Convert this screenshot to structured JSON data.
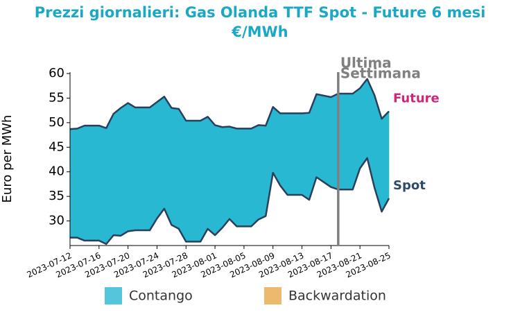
{
  "chart_data": {
    "type": "line",
    "title": [
      "Prezzi giornalieri: Gas Olanda TTF Spot - Future 6 mesi",
      "€/MWh"
    ],
    "ylabel": "Euro per MWh",
    "x": [
      "2023-07-12",
      "2023-07-13",
      "2023-07-14",
      "2023-07-15",
      "2023-07-16",
      "2023-07-17",
      "2023-07-18",
      "2023-07-19",
      "2023-07-20",
      "2023-07-21",
      "2023-07-22",
      "2023-07-23",
      "2023-07-24",
      "2023-07-25",
      "2023-07-26",
      "2023-07-27",
      "2023-07-28",
      "2023-07-29",
      "2023-07-30",
      "2023-07-31",
      "2023-08-01",
      "2023-08-02",
      "2023-08-03",
      "2023-08-04",
      "2023-08-05",
      "2023-08-06",
      "2023-08-07",
      "2023-08-08",
      "2023-08-09",
      "2023-08-10",
      "2023-08-11",
      "2023-08-12",
      "2023-08-13",
      "2023-08-14",
      "2023-08-15",
      "2023-08-16",
      "2023-08-17",
      "2023-08-18",
      "2023-08-19",
      "2023-08-20",
      "2023-08-21",
      "2023-08-22",
      "2023-08-23",
      "2023-08-24",
      "2023-08-25"
    ],
    "series": [
      {
        "name": "Future",
        "color": "#d0267a",
        "line_color": "#2a3f5c",
        "values": [
          48.7,
          48.8,
          49.4,
          49.4,
          49.4,
          48.9,
          51.8,
          53.0,
          54.0,
          53.1,
          53.1,
          53.1,
          54.2,
          55.3,
          53.0,
          52.8,
          50.4,
          50.4,
          50.4,
          51.2,
          49.5,
          49.1,
          49.2,
          48.8,
          48.8,
          48.8,
          49.5,
          49.4,
          53.2,
          51.9,
          51.9,
          51.9,
          51.9,
          52.0,
          55.8,
          55.5,
          55.2,
          55.9,
          55.9,
          55.9,
          57.0,
          58.9,
          55.6,
          50.8,
          52.3
        ]
      },
      {
        "name": "Spot",
        "color": "#2e4a6a",
        "line_color": "#2a3f5c",
        "values": [
          26.6,
          26.6,
          26.0,
          26.0,
          26.0,
          25.3,
          27.1,
          27.0,
          27.9,
          28.1,
          28.1,
          28.1,
          30.5,
          32.5,
          29.2,
          28.4,
          25.8,
          25.8,
          25.8,
          28.4,
          27.1,
          28.6,
          30.4,
          28.9,
          28.9,
          28.9,
          30.3,
          31.0,
          39.8,
          37.2,
          35.3,
          35.3,
          35.3,
          34.3,
          38.9,
          37.9,
          36.9,
          36.4,
          36.4,
          36.4,
          40.7,
          42.8,
          36.8,
          31.9,
          34.6
        ]
      }
    ],
    "legend": [
      {
        "name": "Contango",
        "color": "#29b8d2"
      },
      {
        "name": "Backwardation",
        "color": "#e8a84a"
      }
    ],
    "annotations": [
      {
        "x": "2023-08-18",
        "text": [
          "Ultima",
          "Settimana"
        ],
        "color": "#808080"
      }
    ],
    "xticks": [
      "2023-07-12",
      "2023-07-16",
      "2023-07-20",
      "2023-07-24",
      "2023-07-28",
      "2023-08-01",
      "2023-08-05",
      "2023-08-09",
      "2023-08-13",
      "2023-08-17",
      "2023-08-21",
      "2023-08-25"
    ],
    "ylim": [
      25,
      60
    ],
    "yticks": [
      30,
      35,
      40,
      45,
      50,
      55,
      60
    ],
    "title_color": "#1aa8c4"
  }
}
